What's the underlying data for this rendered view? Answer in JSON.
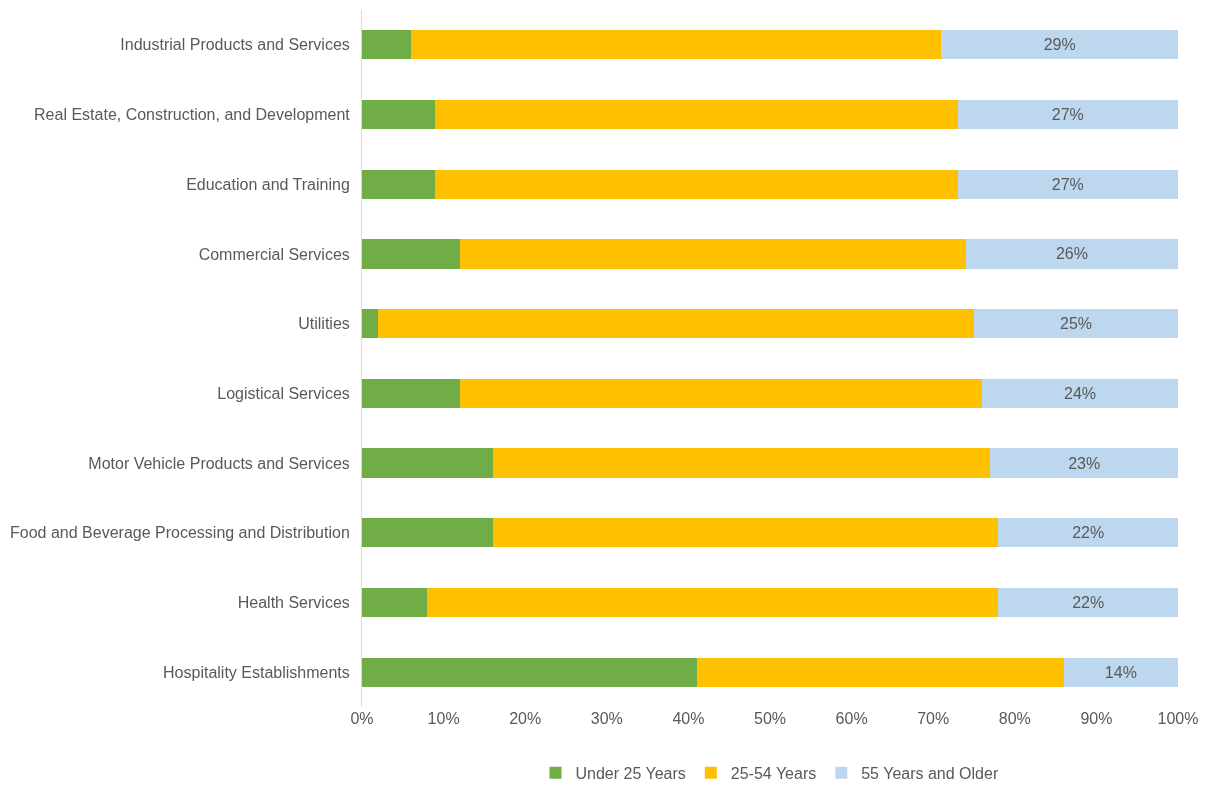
{
  "chart_data": {
    "type": "bar",
    "orientation": "horizontal",
    "stacked": true,
    "categories": [
      "Industrial Products and Services",
      "Real Estate, Construction, and Development",
      "Education and Training",
      "Commercial Services",
      "Utilities",
      "Logistical Services",
      "Motor Vehicle Products and Services",
      "Food and Beverage Processing and Distribution",
      "Health Services",
      "Hospitality Establishments"
    ],
    "series": [
      {
        "name": "Under 25 Years",
        "color": "#70ad47",
        "values": [
          6,
          9,
          9,
          12,
          2,
          12,
          16,
          16,
          8,
          41
        ]
      },
      {
        "name": "25-54 Years",
        "color": "#ffc000",
        "values": [
          65,
          64,
          64,
          62,
          73,
          64,
          61,
          62,
          70,
          45
        ]
      },
      {
        "name": "55 Years and Older",
        "color": "#bdd7ee",
        "values": [
          29,
          27,
          27,
          26,
          25,
          24,
          23,
          22,
          22,
          14
        ],
        "value_labels": [
          "29%",
          "27%",
          "27%",
          "26%",
          "25%",
          "24%",
          "23%",
          "22%",
          "22%",
          "14%"
        ]
      }
    ],
    "xlim": [
      0,
      100
    ],
    "xticks": [
      {
        "value": 0,
        "label": "0%"
      },
      {
        "value": 10,
        "label": "10%"
      },
      {
        "value": 20,
        "label": "20%"
      },
      {
        "value": 30,
        "label": "30%"
      },
      {
        "value": 40,
        "label": "40%"
      },
      {
        "value": 50,
        "label": "50%"
      },
      {
        "value": 60,
        "label": "60%"
      },
      {
        "value": 70,
        "label": "70%"
      },
      {
        "value": 80,
        "label": "80%"
      },
      {
        "value": 90,
        "label": "90%"
      },
      {
        "value": 100,
        "label": "100%"
      }
    ],
    "legend": "bottom"
  }
}
